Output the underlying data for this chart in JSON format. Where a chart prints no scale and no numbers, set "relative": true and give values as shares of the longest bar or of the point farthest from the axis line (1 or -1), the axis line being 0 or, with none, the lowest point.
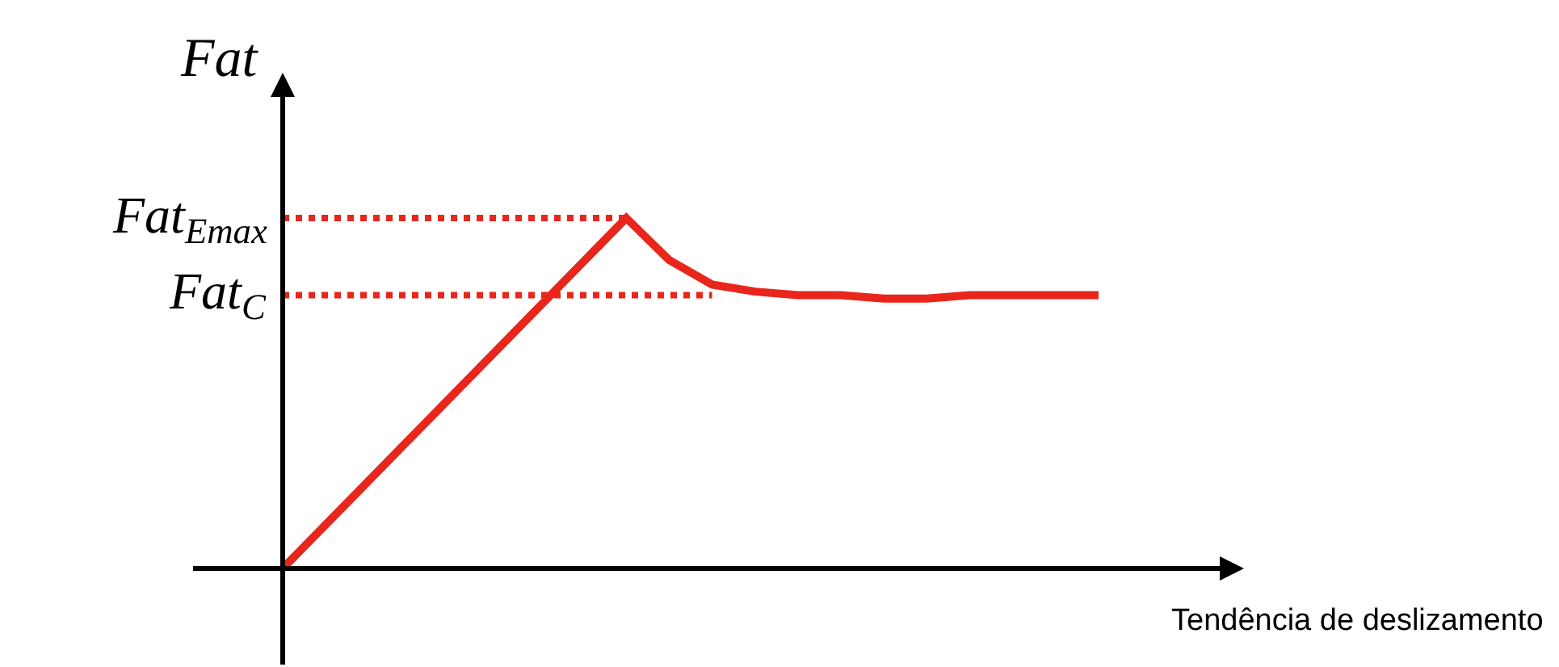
{
  "chart_data": {
    "type": "line",
    "relative": true,
    "marker": "none",
    "line_style": "solid",
    "ylabel": "Fat",
    "xlabel": "Tendência de deslizamento",
    "categories": [
      null,
      null,
      null,
      null,
      null,
      null,
      null,
      null,
      null,
      null,
      null,
      null,
      null,
      null,
      null,
      null,
      null,
      null,
      null,
      null
    ],
    "series": [
      {
        "color": "#e8261c",
        "values": [
          0,
          0.125,
          0.25,
          0.375,
          0.5,
          0.625,
          0.75,
          0.875,
          1,
          0.88,
          0.81,
          0.79,
          0.78,
          0.78,
          0.77,
          0.77,
          0.78,
          0.78,
          0.78,
          0.78
        ]
      }
    ],
    "ref_lines": [
      {
        "axis": "y",
        "value": 1,
        "label": "Fat$_{Emax}$",
        "color": "#e8261c",
        "line_style": "dotted"
      },
      {
        "axis": "y",
        "value": 0.78,
        "label": "Fat$_{C}$",
        "color": "#e8261c",
        "line_style": "dotted"
      }
    ]
  }
}
